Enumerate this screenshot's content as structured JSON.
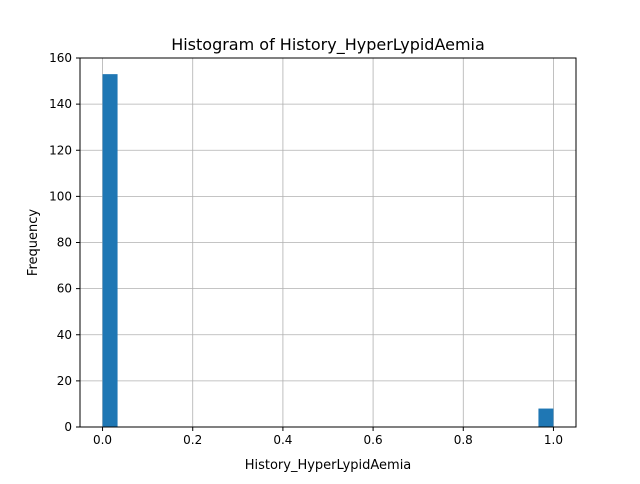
{
  "chart_data": {
    "type": "bar",
    "title": "Histogram of History_HyperLypidAemia",
    "xlabel": "History_HyperLypidAemia",
    "ylabel": "Frequency",
    "xlim": [
      -0.05,
      1.05
    ],
    "ylim": [
      0,
      160
    ],
    "xticks": [
      "0.0",
      "0.2",
      "0.4",
      "0.6",
      "0.8",
      "1.0"
    ],
    "xtick_values": [
      0,
      0.2,
      0.4,
      0.6,
      0.8,
      1.0
    ],
    "yticks": [
      "0",
      "20",
      "40",
      "60",
      "80",
      "100",
      "120",
      "140",
      "160"
    ],
    "ytick_values": [
      0,
      20,
      40,
      60,
      80,
      100,
      120,
      140,
      160
    ],
    "grid": true,
    "bar_color": "#1f77b4",
    "bins": [
      {
        "x0": 0.0,
        "x1": 0.0333,
        "count": 153
      },
      {
        "x0": 0.9667,
        "x1": 1.0,
        "count": 8
      }
    ]
  }
}
